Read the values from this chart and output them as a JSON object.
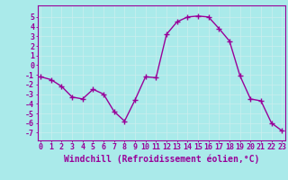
{
  "x": [
    0,
    1,
    2,
    3,
    4,
    5,
    6,
    7,
    8,
    9,
    10,
    11,
    12,
    13,
    14,
    15,
    16,
    17,
    18,
    19,
    20,
    21,
    22,
    23
  ],
  "y": [
    -1.2,
    -1.5,
    -2.2,
    -3.3,
    -3.5,
    -2.5,
    -3.0,
    -4.8,
    -5.8,
    -3.6,
    -1.2,
    -1.3,
    3.2,
    4.5,
    5.0,
    5.1,
    5.0,
    3.8,
    2.5,
    -1.1,
    -3.5,
    -3.7,
    -6.0,
    -6.8
  ],
  "line_color": "#990099",
  "marker": "+",
  "marker_size": 4,
  "marker_linewidth": 1.0,
  "background_color": "#aaeaea",
  "grid_color": "#cceeee",
  "xlabel": "Windchill (Refroidissement éolien,°C)",
  "xlabel_color": "#990099",
  "xlabel_fontsize": 7,
  "xtick_labels": [
    "0",
    "1",
    "2",
    "3",
    "4",
    "5",
    "6",
    "7",
    "8",
    "9",
    "10",
    "11",
    "12",
    "13",
    "14",
    "15",
    "16",
    "17",
    "18",
    "19",
    "20",
    "21",
    "22",
    "23"
  ],
  "ytick_values": [
    -7,
    -6,
    -5,
    -4,
    -3,
    -2,
    -1,
    0,
    1,
    2,
    3,
    4,
    5
  ],
  "ylim": [
    -7.8,
    6.2
  ],
  "xlim": [
    -0.3,
    23.3
  ],
  "tick_color": "#990099",
  "tick_fontsize": 6,
  "spine_color": "#990099",
  "linewidth": 1.0,
  "fig_width": 3.2,
  "fig_height": 2.0,
  "dpi": 100
}
